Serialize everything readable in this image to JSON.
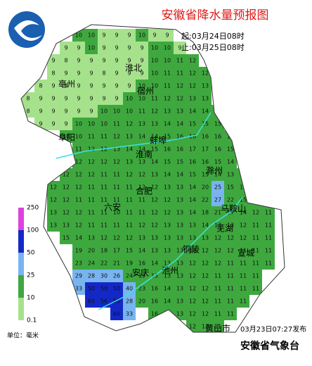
{
  "header": {
    "title": "安徽省降水量预报图",
    "start": "起:03月24日08时",
    "end": "止:03月25日08时"
  },
  "legend": {
    "ticks": [
      0.1,
      10,
      25,
      50,
      100,
      250
    ],
    "colors": [
      "#a6e28c",
      "#3ea83e",
      "#78b4f0",
      "#1428c8",
      "#e040e0"
    ],
    "unit": "单位：毫米"
  },
  "cities": [
    "淮北",
    "宿州",
    "亳州",
    "阜阳",
    "蚌埠",
    "淮南",
    "滁州",
    "合肥",
    "六安",
    "马鞍山",
    "芜湖",
    "铜陵",
    "宣城",
    "安庆",
    "池州",
    "黄山市"
  ],
  "grid": [
    [
      null,
      null,
      null,
      null,
      10,
      10,
      9,
      9,
      9,
      10,
      9,
      9,
      null,
      null,
      null,
      null,
      null,
      null,
      null,
      null
    ],
    [
      null,
      null,
      null,
      9,
      9,
      10,
      9,
      9,
      9,
      9,
      10,
      10,
      9,
      null,
      null,
      null,
      null,
      null,
      null,
      null
    ],
    [
      null,
      null,
      9,
      8,
      9,
      9,
      9,
      9,
      9,
      9,
      10,
      10,
      11,
      12,
      null,
      null,
      null,
      null,
      null,
      null
    ],
    [
      null,
      null,
      8,
      9,
      9,
      9,
      8,
      9,
      9,
      9,
      10,
      11,
      11,
      12,
      12,
      null,
      null,
      null,
      null,
      null
    ],
    [
      null,
      8,
      9,
      9,
      9,
      9,
      9,
      9,
      9,
      10,
      10,
      11,
      12,
      12,
      13,
      null,
      null,
      null,
      null,
      null
    ],
    [
      8,
      9,
      9,
      9,
      9,
      9,
      9,
      9,
      10,
      10,
      11,
      12,
      12,
      13,
      13,
      null,
      null,
      null,
      null,
      null
    ],
    [
      8,
      9,
      9,
      9,
      9,
      9,
      10,
      10,
      10,
      11,
      12,
      13,
      13,
      14,
      14,
      14,
      null,
      null,
      null,
      null
    ],
    [
      null,
      9,
      9,
      9,
      10,
      10,
      10,
      11,
      12,
      13,
      13,
      14,
      14,
      15,
      15,
      15,
      null,
      null,
      null,
      null
    ],
    [
      null,
      null,
      null,
      10,
      10,
      11,
      11,
      12,
      13,
      14,
      14,
      15,
      16,
      16,
      16,
      16,
      15,
      null,
      null,
      null
    ],
    [
      null,
      null,
      null,
      null,
      11,
      12,
      12,
      13,
      14,
      14,
      15,
      16,
      16,
      17,
      17,
      16,
      15,
      null,
      null,
      null
    ],
    [
      null,
      null,
      null,
      null,
      12,
      12,
      12,
      12,
      13,
      13,
      14,
      15,
      15,
      16,
      16,
      15,
      14,
      null,
      null,
      null
    ],
    [
      null,
      null,
      null,
      12,
      12,
      12,
      11,
      11,
      12,
      12,
      13,
      14,
      14,
      15,
      15,
      14,
      13,
      13,
      null,
      null
    ],
    [
      null,
      null,
      12,
      12,
      12,
      11,
      11,
      11,
      11,
      12,
      12,
      13,
      13,
      14,
      20,
      25,
      15,
      13,
      null,
      null
    ],
    [
      null,
      null,
      12,
      12,
      11,
      11,
      11,
      11,
      11,
      11,
      12,
      12,
      13,
      14,
      22,
      27,
      22,
      15,
      12,
      11
    ],
    [
      null,
      null,
      13,
      12,
      12,
      11,
      11,
      10,
      11,
      11,
      12,
      12,
      13,
      14,
      18,
      21,
      17,
      14,
      12,
      11
    ],
    [
      null,
      null,
      13,
      13,
      12,
      11,
      11,
      11,
      11,
      12,
      12,
      13,
      13,
      13,
      14,
      13,
      13,
      12,
      11,
      11
    ],
    [
      null,
      null,
      null,
      15,
      14,
      13,
      12,
      12,
      12,
      13,
      13,
      13,
      13,
      13,
      13,
      12,
      12,
      12,
      11,
      11
    ],
    [
      null,
      null,
      null,
      null,
      19,
      20,
      18,
      17,
      15,
      14,
      13,
      13,
      13,
      12,
      12,
      12,
      12,
      11,
      11,
      11
    ],
    [
      null,
      null,
      null,
      null,
      23,
      24,
      22,
      21,
      19,
      16,
      14,
      13,
      13,
      12,
      12,
      12,
      11,
      11,
      11,
      11
    ],
    [
      null,
      null,
      null,
      null,
      29,
      28,
      30,
      26,
      24,
      19,
      15,
      13,
      13,
      12,
      12,
      11,
      11,
      11,
      11,
      null
    ],
    [
      null,
      null,
      null,
      null,
      33,
      50,
      50,
      50,
      40,
      23,
      16,
      14,
      13,
      12,
      12,
      11,
      11,
      11,
      11,
      null
    ],
    [
      null,
      null,
      null,
      null,
      null,
      60,
      56,
      50,
      28,
      20,
      16,
      14,
      13,
      12,
      12,
      11,
      11,
      11,
      null,
      null
    ],
    [
      null,
      null,
      null,
      null,
      null,
      null,
      null,
      60,
      33,
      null,
      16,
      14,
      13,
      12,
      12,
      11,
      11,
      null,
      null,
      null
    ],
    [
      null,
      null,
      null,
      null,
      null,
      null,
      null,
      null,
      null,
      null,
      null,
      null,
      null,
      12,
      12,
      11,
      null,
      null,
      null,
      null
    ]
  ],
  "footer": {
    "issued": "03月23日07:27发布",
    "agency": "安徽省气象台"
  }
}
